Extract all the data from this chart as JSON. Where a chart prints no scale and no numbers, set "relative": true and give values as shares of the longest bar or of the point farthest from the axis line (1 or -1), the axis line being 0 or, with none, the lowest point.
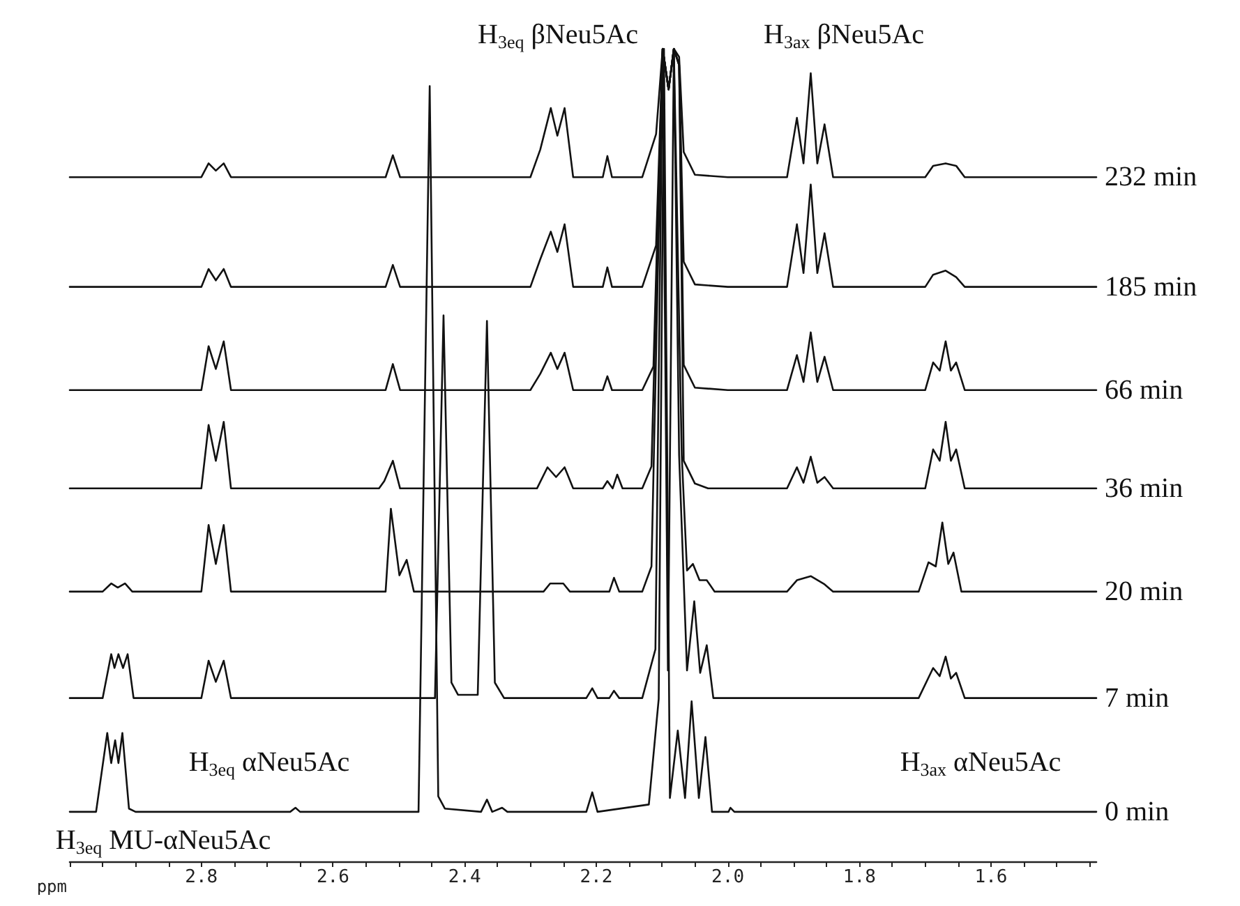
{
  "chart_data": {
    "type": "line",
    "relative": true,
    "xlabel": "ppm",
    "xlim": [
      3.0,
      1.44
    ],
    "xticks": [
      {
        "value": 3.0,
        "label": null
      },
      {
        "value": 2.95,
        "label": null
      },
      {
        "value": 2.9,
        "label": null
      },
      {
        "value": 2.85,
        "label": null
      },
      2.8,
      {
        "value": 2.75,
        "label": null
      },
      {
        "value": 2.7,
        "label": null
      },
      {
        "value": 2.65,
        "label": null
      },
      2.6,
      {
        "value": 2.55,
        "label": null
      },
      {
        "value": 2.5,
        "label": null
      },
      {
        "value": 2.45,
        "label": null
      },
      2.4,
      {
        "value": 2.35,
        "label": null
      },
      {
        "value": 2.3,
        "label": null
      },
      {
        "value": 2.25,
        "label": null
      },
      2.2,
      {
        "value": 2.15,
        "label": null
      },
      {
        "value": 2.1,
        "label": null
      },
      {
        "value": 2.05,
        "label": null
      },
      {
        "value": 2.0,
        "label": "2.0"
      },
      {
        "value": 1.95,
        "label": null
      },
      {
        "value": 1.9,
        "label": null
      },
      {
        "value": 1.85,
        "label": null
      },
      1.8,
      {
        "value": 1.75,
        "label": null
      },
      {
        "value": 1.7,
        "label": null
      },
      {
        "value": 1.65,
        "label": null
      },
      1.6,
      {
        "value": 1.55,
        "label": null
      },
      {
        "value": 1.5,
        "label": null
      },
      {
        "value": 1.45,
        "label": null
      }
    ],
    "tick_labels": "x",
    "grid": false,
    "line_style": "solid",
    "series": [
      {
        "name": "232 min",
        "color": "#111111",
        "x": [
          3.0,
          2.8,
          2.789,
          2.778,
          2.766,
          2.755,
          2.52,
          2.509,
          2.498,
          2.3,
          2.285,
          2.269,
          2.259,
          2.248,
          2.235,
          2.19,
          2.183,
          2.176,
          2.13,
          2.109,
          2.099,
          2.09,
          2.082,
          2.074,
          2.067,
          2.05,
          2.0,
          1.91,
          1.895,
          1.885,
          1.874,
          1.864,
          1.853,
          1.84,
          1.7,
          1.688,
          1.669,
          1.653,
          1.64,
          1.44
        ],
        "values": [
          0.842,
          0.842,
          0.859,
          0.85,
          0.859,
          0.842,
          0.842,
          0.869,
          0.842,
          0.842,
          0.876,
          0.927,
          0.893,
          0.927,
          0.842,
          0.842,
          0.868,
          0.842,
          0.842,
          0.895,
          1.0,
          0.95,
          1.0,
          0.99,
          0.873,
          0.845,
          0.842,
          0.842,
          0.915,
          0.859,
          0.97,
          0.859,
          0.907,
          0.842,
          0.842,
          0.856,
          0.859,
          0.856,
          0.842,
          0.842
        ]
      },
      {
        "name": "185 min",
        "color": "#111111",
        "x": [
          3.0,
          2.8,
          2.789,
          2.778,
          2.766,
          2.755,
          2.52,
          2.509,
          2.498,
          2.3,
          2.285,
          2.269,
          2.259,
          2.248,
          2.235,
          2.19,
          2.183,
          2.176,
          2.13,
          2.109,
          2.099,
          2.09,
          2.082,
          2.074,
          2.067,
          2.05,
          2.0,
          1.91,
          1.895,
          1.885,
          1.874,
          1.864,
          1.853,
          1.84,
          1.7,
          1.688,
          1.669,
          1.653,
          1.64,
          1.44
        ],
        "values": [
          0.707,
          0.707,
          0.729,
          0.715,
          0.729,
          0.707,
          0.707,
          0.734,
          0.707,
          0.707,
          0.741,
          0.775,
          0.75,
          0.784,
          0.707,
          0.707,
          0.731,
          0.707,
          0.707,
          0.758,
          1.0,
          0.95,
          1.0,
          0.98,
          0.738,
          0.71,
          0.707,
          0.707,
          0.784,
          0.724,
          0.833,
          0.724,
          0.773,
          0.707,
          0.707,
          0.722,
          0.727,
          0.719,
          0.707,
          0.707
        ]
      },
      {
        "name": "66 min",
        "color": "#111111",
        "x": [
          3.0,
          2.8,
          2.789,
          2.778,
          2.766,
          2.755,
          2.52,
          2.509,
          2.498,
          2.3,
          2.285,
          2.269,
          2.259,
          2.248,
          2.235,
          2.19,
          2.183,
          2.176,
          2.13,
          2.113,
          2.099,
          2.09,
          2.082,
          2.074,
          2.067,
          2.05,
          2.0,
          1.91,
          1.895,
          1.885,
          1.874,
          1.864,
          1.853,
          1.84,
          1.7,
          1.688,
          1.678,
          1.669,
          1.661,
          1.653,
          1.64,
          1.44
        ],
        "values": [
          0.58,
          0.58,
          0.634,
          0.606,
          0.64,
          0.58,
          0.58,
          0.612,
          0.58,
          0.58,
          0.6,
          0.626,
          0.606,
          0.626,
          0.58,
          0.58,
          0.597,
          0.58,
          0.58,
          0.609,
          1.0,
          0.95,
          1.0,
          0.98,
          0.611,
          0.583,
          0.58,
          0.58,
          0.623,
          0.59,
          0.651,
          0.59,
          0.621,
          0.58,
          0.58,
          0.614,
          0.604,
          0.64,
          0.604,
          0.614,
          0.58,
          0.58
        ]
      },
      {
        "name": "36 min",
        "color": "#111111",
        "x": [
          3.0,
          2.8,
          2.789,
          2.778,
          2.766,
          2.755,
          2.53,
          2.522,
          2.509,
          2.498,
          2.29,
          2.274,
          2.261,
          2.248,
          2.235,
          2.19,
          2.183,
          2.175,
          2.168,
          2.16,
          2.13,
          2.116,
          2.099,
          2.09,
          2.082,
          2.074,
          2.067,
          2.05,
          2.03,
          1.91,
          1.895,
          1.885,
          1.874,
          1.864,
          1.853,
          1.84,
          1.7,
          1.688,
          1.678,
          1.669,
          1.661,
          1.653,
          1.64,
          1.44
        ],
        "values": [
          0.459,
          0.459,
          0.537,
          0.493,
          0.541,
          0.459,
          0.459,
          0.468,
          0.493,
          0.459,
          0.459,
          0.485,
          0.473,
          0.485,
          0.459,
          0.459,
          0.468,
          0.459,
          0.476,
          0.459,
          0.459,
          0.486,
          1.0,
          0.95,
          1.0,
          0.98,
          0.493,
          0.465,
          0.459,
          0.459,
          0.485,
          0.466,
          0.498,
          0.466,
          0.473,
          0.459,
          0.459,
          0.507,
          0.493,
          0.541,
          0.493,
          0.507,
          0.459,
          0.459
        ]
      },
      {
        "name": "20 min",
        "color": "#111111",
        "x": [
          3.0,
          2.95,
          2.937,
          2.927,
          2.916,
          2.905,
          2.8,
          2.789,
          2.778,
          2.766,
          2.755,
          2.52,
          2.512,
          2.499,
          2.488,
          2.477,
          2.28,
          2.27,
          2.25,
          2.24,
          2.18,
          2.173,
          2.165,
          2.13,
          2.116,
          2.099,
          2.09,
          2.082,
          2.07,
          2.062,
          2.053,
          2.043,
          2.032,
          2.02,
          1.91,
          1.895,
          1.874,
          1.853,
          1.84,
          1.71,
          1.695,
          1.684,
          1.674,
          1.665,
          1.657,
          1.645,
          1.44
        ],
        "values": [
          0.332,
          0.332,
          0.342,
          0.337,
          0.342,
          0.332,
          0.332,
          0.414,
          0.366,
          0.414,
          0.332,
          0.332,
          0.434,
          0.352,
          0.371,
          0.332,
          0.332,
          0.342,
          0.342,
          0.332,
          0.332,
          0.349,
          0.332,
          0.332,
          0.363,
          1.0,
          0.95,
          1.0,
          0.5,
          0.358,
          0.366,
          0.346,
          0.346,
          0.332,
          0.332,
          0.346,
          0.351,
          0.341,
          0.332,
          0.332,
          0.368,
          0.363,
          0.417,
          0.366,
          0.38,
          0.332,
          0.332
        ]
      },
      {
        "name": "7 min",
        "color": "#111111",
        "x": [
          3.0,
          2.95,
          2.937,
          2.932,
          2.926,
          2.919,
          2.912,
          2.903,
          2.8,
          2.789,
          2.778,
          2.766,
          2.755,
          2.445,
          2.432,
          2.42,
          2.41,
          2.38,
          2.366,
          2.354,
          2.34,
          2.215,
          2.206,
          2.198,
          2.18,
          2.173,
          2.165,
          2.13,
          2.11,
          2.099,
          2.091,
          2.082,
          2.074,
          2.062,
          2.051,
          2.042,
          2.032,
          2.022,
          1.71,
          1.688,
          1.678,
          1.669,
          1.661,
          1.653,
          1.64,
          1.44
        ],
        "values": [
          0.201,
          0.201,
          0.255,
          0.238,
          0.255,
          0.238,
          0.255,
          0.201,
          0.201,
          0.247,
          0.221,
          0.247,
          0.201,
          0.201,
          0.672,
          0.22,
          0.205,
          0.205,
          0.665,
          0.22,
          0.201,
          0.201,
          0.213,
          0.201,
          0.201,
          0.21,
          0.201,
          0.201,
          0.261,
          1.0,
          0.235,
          1.0,
          0.5,
          0.235,
          0.32,
          0.232,
          0.266,
          0.201,
          0.201,
          0.238,
          0.228,
          0.252,
          0.225,
          0.232,
          0.201,
          0.201
        ]
      },
      {
        "name": "0 min",
        "color": "#111111",
        "x": [
          3.0,
          2.96,
          2.943,
          2.937,
          2.931,
          2.926,
          2.92,
          2.91,
          2.9,
          2.665,
          2.657,
          2.65,
          2.47,
          2.453,
          2.44,
          2.43,
          2.375,
          2.366,
          2.358,
          2.343,
          2.335,
          2.215,
          2.206,
          2.198,
          2.12,
          2.105,
          2.097,
          2.088,
          2.076,
          2.065,
          2.055,
          2.044,
          2.034,
          2.024,
          1.999,
          1.996,
          1.99,
          1.44
        ],
        "values": [
          0.061,
          0.061,
          0.158,
          0.121,
          0.149,
          0.121,
          0.158,
          0.065,
          0.061,
          0.061,
          0.066,
          0.061,
          0.061,
          0.954,
          0.08,
          0.065,
          0.061,
          0.076,
          0.061,
          0.066,
          0.061,
          0.061,
          0.085,
          0.061,
          0.07,
          0.2,
          1.0,
          0.078,
          0.161,
          0.078,
          0.197,
          0.078,
          0.153,
          0.061,
          0.061,
          0.066,
          0.061,
          0.061
        ]
      }
    ],
    "annotations": [
      "H$_{3eq}$ βNeu5Ac",
      "H$_{3ax}$ βNeu5Ac",
      "H$_{3eq}$ αNeu5Ac",
      "H$_{3ax}$ αNeu5Ac",
      "H$_{3eq}$ MU-αNeu5Ac"
    ]
  }
}
